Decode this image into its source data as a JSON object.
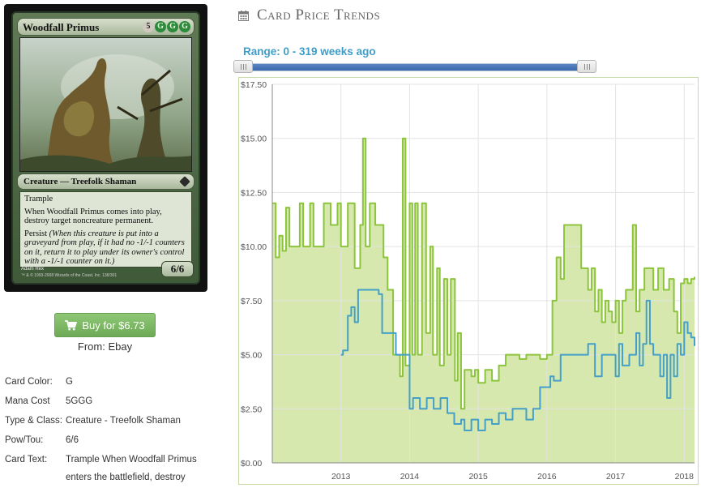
{
  "card": {
    "name": "Woodfall Primus",
    "mana_symbols": [
      {
        "symbol": "5",
        "kind": "generic"
      },
      {
        "symbol": "G",
        "kind": "green"
      },
      {
        "symbol": "G",
        "kind": "green"
      },
      {
        "symbol": "G",
        "kind": "green"
      }
    ],
    "type_line": "Creature — Treefolk Shaman",
    "rules_text": [
      "Trample",
      "When Woodfall Primus comes into play, destroy target noncreature permanent."
    ],
    "persist_keyword": "Persist",
    "persist_reminder": "(When this creature is put into a graveyard from play, if it had no -1/-1 counters on it, return it to play under its owner's control with a -1/-1 counter on it.)",
    "power_toughness": "6/6",
    "artist": "Adam Rex",
    "copyright": "™ & © 1993-2008 Wizards of the Coast, Inc. 138/301"
  },
  "buy": {
    "label": "Buy for $6.73",
    "icon": "shopping-cart-icon",
    "source": "From: Ebay",
    "color": "#78b55e"
  },
  "details": [
    {
      "label": "Card Color:",
      "value": "G"
    },
    {
      "label": "Mana Cost",
      "value": "5GGG"
    },
    {
      "label": "Type & Class:",
      "value": "Creature - Treefolk Shaman"
    },
    {
      "label": "Pow/Tou:",
      "value": "6/6"
    },
    {
      "label": "Card Text:",
      "value": "Trample When Woodfall Primus enters the battlefield, destroy"
    }
  ],
  "trends": {
    "title": "Card Price Trends",
    "icon": "calendar-icon",
    "range_label": "Range: 0 - 319 weeks ago",
    "range_start_weeks": 0,
    "range_end_weeks": 319
  },
  "chart_data": {
    "type": "line",
    "title": "",
    "xlabel": "",
    "ylabel": "",
    "x_ticks": [
      "2013",
      "2014",
      "2015",
      "2016",
      "2017",
      "2018"
    ],
    "y_ticks": [
      "$0.00",
      "$2.50",
      "$5.00",
      "$7.50",
      "$10.00",
      "$12.50",
      "$15.00",
      "$17.50"
    ],
    "ylim": [
      0,
      17.5
    ],
    "xlim": [
      2012.0,
      2018.15
    ],
    "grid": true,
    "series": [
      {
        "color": "#8cc43c",
        "fill": "#d6e8ad",
        "area": true,
        "points": [
          [
            2012.0,
            12.0
          ],
          [
            2012.05,
            9.5
          ],
          [
            2012.1,
            10.5
          ],
          [
            2012.15,
            9.8
          ],
          [
            2012.2,
            11.8
          ],
          [
            2012.25,
            10.0
          ],
          [
            2012.35,
            10.0
          ],
          [
            2012.4,
            12.0
          ],
          [
            2012.45,
            10.0
          ],
          [
            2012.55,
            12.0
          ],
          [
            2012.6,
            10.0
          ],
          [
            2012.75,
            12.0
          ],
          [
            2012.85,
            11.0
          ],
          [
            2012.95,
            12.0
          ],
          [
            2013.0,
            10.0
          ],
          [
            2013.1,
            12.0
          ],
          [
            2013.2,
            9.0
          ],
          [
            2013.28,
            11.0
          ],
          [
            2013.32,
            15.0
          ],
          [
            2013.36,
            10.0
          ],
          [
            2013.42,
            12.0
          ],
          [
            2013.5,
            11.0
          ],
          [
            2013.58,
            11.0
          ],
          [
            2013.62,
            9.5
          ],
          [
            2013.68,
            8.0
          ],
          [
            2013.76,
            5.0
          ],
          [
            2013.82,
            5.0
          ],
          [
            2013.86,
            4.0
          ],
          [
            2013.9,
            15.0
          ],
          [
            2013.94,
            4.5
          ],
          [
            2014.0,
            12.0
          ],
          [
            2014.04,
            5.0
          ],
          [
            2014.08,
            12.0
          ],
          [
            2014.12,
            5.0
          ],
          [
            2014.18,
            12.0
          ],
          [
            2014.24,
            6.0
          ],
          [
            2014.3,
            10.0
          ],
          [
            2014.34,
            5.0
          ],
          [
            2014.4,
            9.0
          ],
          [
            2014.44,
            4.5
          ],
          [
            2014.5,
            8.5
          ],
          [
            2014.55,
            5.0
          ],
          [
            2014.6,
            8.5
          ],
          [
            2014.66,
            3.8
          ],
          [
            2014.7,
            6.0
          ],
          [
            2014.75,
            2.5
          ],
          [
            2014.8,
            4.3
          ],
          [
            2014.9,
            4.0
          ],
          [
            2014.95,
            4.3
          ],
          [
            2015.0,
            3.7
          ],
          [
            2015.1,
            4.3
          ],
          [
            2015.2,
            3.8
          ],
          [
            2015.3,
            4.5
          ],
          [
            2015.4,
            5.0
          ],
          [
            2015.5,
            5.0
          ],
          [
            2015.6,
            4.8
          ],
          [
            2015.7,
            5.0
          ],
          [
            2015.8,
            5.0
          ],
          [
            2015.9,
            4.8
          ],
          [
            2016.0,
            5.0
          ],
          [
            2016.08,
            7.5
          ],
          [
            2016.14,
            9.5
          ],
          [
            2016.2,
            8.5
          ],
          [
            2016.25,
            11.0
          ],
          [
            2016.35,
            11.0
          ],
          [
            2016.45,
            11.0
          ],
          [
            2016.5,
            9.0
          ],
          [
            2016.55,
            9.0
          ],
          [
            2016.6,
            8.0
          ],
          [
            2016.65,
            9.0
          ],
          [
            2016.7,
            7.0
          ],
          [
            2016.75,
            8.0
          ],
          [
            2016.8,
            6.5
          ],
          [
            2016.85,
            7.5
          ],
          [
            2016.9,
            7.0
          ],
          [
            2016.95,
            6.5
          ],
          [
            2017.0,
            7.5
          ],
          [
            2017.05,
            6.0
          ],
          [
            2017.1,
            7.5
          ],
          [
            2017.15,
            8.0
          ],
          [
            2017.2,
            8.0
          ],
          [
            2017.25,
            11.0
          ],
          [
            2017.3,
            7.0
          ],
          [
            2017.35,
            8.0
          ],
          [
            2017.42,
            9.0
          ],
          [
            2017.5,
            9.0
          ],
          [
            2017.55,
            8.0
          ],
          [
            2017.62,
            9.0
          ],
          [
            2017.7,
            8.0
          ],
          [
            2017.78,
            8.5
          ],
          [
            2017.85,
            7.0
          ],
          [
            2017.9,
            6.0
          ],
          [
            2017.95,
            8.3
          ],
          [
            2018.0,
            8.5
          ],
          [
            2018.05,
            8.3
          ],
          [
            2018.1,
            8.5
          ],
          [
            2018.15,
            8.6
          ]
        ]
      },
      {
        "color": "#44a0c8",
        "area": false,
        "points": [
          [
            2013.0,
            5.0
          ],
          [
            2013.03,
            5.2
          ],
          [
            2013.1,
            6.8
          ],
          [
            2013.15,
            7.2
          ],
          [
            2013.2,
            6.5
          ],
          [
            2013.25,
            8.0
          ],
          [
            2013.35,
            8.0
          ],
          [
            2013.45,
            8.0
          ],
          [
            2013.55,
            7.8
          ],
          [
            2013.6,
            6.0
          ],
          [
            2013.7,
            6.0
          ],
          [
            2013.8,
            5.0
          ],
          [
            2013.95,
            5.0
          ],
          [
            2014.0,
            2.5
          ],
          [
            2014.05,
            3.0
          ],
          [
            2014.15,
            2.5
          ],
          [
            2014.25,
            3.0
          ],
          [
            2014.35,
            2.5
          ],
          [
            2014.45,
            3.0
          ],
          [
            2014.55,
            2.3
          ],
          [
            2014.65,
            1.8
          ],
          [
            2014.75,
            2.0
          ],
          [
            2014.8,
            1.5
          ],
          [
            2014.9,
            2.0
          ],
          [
            2015.0,
            1.5
          ],
          [
            2015.1,
            2.0
          ],
          [
            2015.2,
            1.8
          ],
          [
            2015.3,
            2.3
          ],
          [
            2015.4,
            2.0
          ],
          [
            2015.5,
            2.5
          ],
          [
            2015.6,
            2.5
          ],
          [
            2015.7,
            2.0
          ],
          [
            2015.8,
            2.5
          ],
          [
            2015.9,
            3.5
          ],
          [
            2016.0,
            3.5
          ],
          [
            2016.05,
            4.0
          ],
          [
            2016.1,
            3.8
          ],
          [
            2016.2,
            5.0
          ],
          [
            2016.3,
            5.0
          ],
          [
            2016.4,
            5.0
          ],
          [
            2016.5,
            5.0
          ],
          [
            2016.6,
            5.5
          ],
          [
            2016.7,
            4.0
          ],
          [
            2016.8,
            5.0
          ],
          [
            2016.9,
            5.0
          ],
          [
            2017.0,
            4.0
          ],
          [
            2017.05,
            5.5
          ],
          [
            2017.1,
            4.5
          ],
          [
            2017.2,
            5.0
          ],
          [
            2017.3,
            6.0
          ],
          [
            2017.35,
            4.5
          ],
          [
            2017.4,
            5.5
          ],
          [
            2017.45,
            7.5
          ],
          [
            2017.5,
            5.5
          ],
          [
            2017.55,
            5.0
          ],
          [
            2017.6,
            5.0
          ],
          [
            2017.65,
            4.0
          ],
          [
            2017.7,
            5.0
          ],
          [
            2017.75,
            3.0
          ],
          [
            2017.8,
            5.0
          ],
          [
            2017.85,
            4.0
          ],
          [
            2017.9,
            5.5
          ],
          [
            2017.95,
            5.0
          ],
          [
            2018.0,
            6.5
          ],
          [
            2018.05,
            6.0
          ],
          [
            2018.1,
            5.8
          ],
          [
            2018.15,
            5.4
          ]
        ]
      }
    ]
  }
}
